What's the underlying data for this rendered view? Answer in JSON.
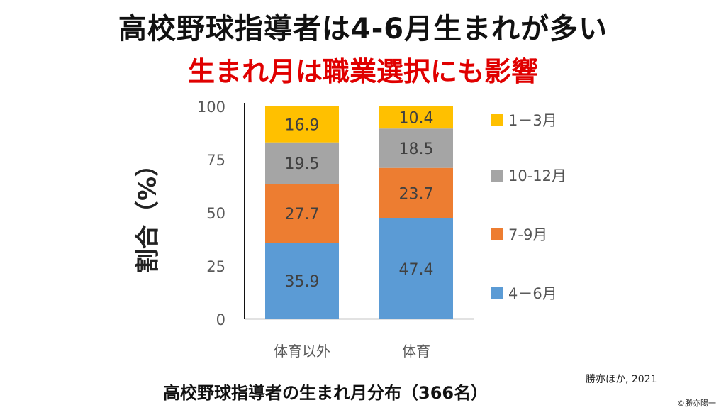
{
  "title": "高校野球指導者は4-6月生まれが多い",
  "subtitle": "生まれ月は職業選択にも影響",
  "caption": "高校野球指導者の生まれ月分布（366名）",
  "source": "勝亦ほか, 2021",
  "copyright": "©勝亦陽一",
  "chart_data": {
    "type": "stacked-bar",
    "categories": [
      "体育以外",
      "体育"
    ],
    "series": [
      {
        "name": "4－6月",
        "color": "#5b9bd5",
        "values": [
          35.9,
          47.4
        ]
      },
      {
        "name": "7-9月",
        "color": "#ed7d31",
        "values": [
          27.7,
          23.7
        ]
      },
      {
        "name": "10-12月",
        "color": "#a5a5a5",
        "values": [
          19.5,
          18.5
        ]
      },
      {
        "name": "1－3月",
        "color": "#ffc000",
        "values": [
          16.9,
          10.4
        ]
      }
    ],
    "ylabel": "割合（%）",
    "xlabel": "",
    "ylim": [
      0,
      100
    ],
    "yticks": [
      "0",
      "25",
      "50",
      "75",
      "100"
    ],
    "legend": "right",
    "grid": false
  }
}
